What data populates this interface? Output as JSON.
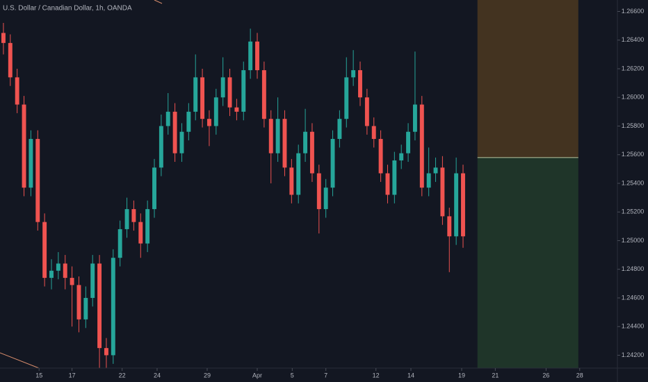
{
  "chart_data": {
    "type": "candlestick",
    "title": "U.S. Dollar / Canadian Dollar, 1h, OANDA",
    "up_color": "#26a69a",
    "down_color": "#ef5350",
    "grid": false,
    "open": [
      1.2645,
      1.2638,
      1.2614,
      1.2595,
      1.2537,
      1.2571,
      1.2513,
      1.2474,
      1.2479,
      1.2484,
      1.2474,
      1.2469,
      1.2445,
      1.246,
      1.2484,
      1.2425,
      1.242,
      1.2488,
      1.2508,
      1.2522,
      1.2513,
      1.2498,
      1.2522,
      1.2551,
      1.258,
      1.259,
      1.2561,
      1.2576,
      1.259,
      1.2614,
      1.2585,
      1.258,
      1.26,
      1.2614,
      1.2593,
      1.259,
      1.2619,
      1.2639,
      1.2619,
      1.2585,
      1.2561,
      1.2585,
      1.2551,
      1.2532,
      1.2561,
      1.2576,
      1.2547,
      1.2522,
      1.2537,
      1.2571,
      1.2585,
      1.2614,
      1.2619,
      1.26,
      1.258,
      1.2571,
      1.2547,
      1.2532,
      1.2556,
      1.2561,
      1.2576,
      1.2595,
      1.2537,
      1.2547,
      1.2551,
      1.2517,
      1.2503,
      1.2547
    ],
    "high": [
      1.2652,
      1.2644,
      1.262,
      1.2601,
      1.2577,
      1.2577,
      1.2519,
      1.2487,
      1.2492,
      1.249,
      1.2482,
      1.2475,
      1.2468,
      1.249,
      1.249,
      1.2432,
      1.2494,
      1.2514,
      1.253,
      1.2528,
      1.2519,
      1.2528,
      1.2557,
      1.2588,
      1.2603,
      1.2596,
      1.2582,
      1.2596,
      1.263,
      1.262,
      1.2591,
      1.2606,
      1.2628,
      1.262,
      1.2599,
      1.2625,
      1.2648,
      1.2645,
      1.2625,
      1.2591,
      1.26,
      1.2591,
      1.2557,
      1.2567,
      1.2592,
      1.2582,
      1.2553,
      1.2543,
      1.2577,
      1.2591,
      1.2628,
      1.2633,
      1.2625,
      1.2606,
      1.2586,
      1.2577,
      1.2553,
      1.2562,
      1.2567,
      1.2582,
      1.2632,
      1.2601,
      1.2565,
      1.2558,
      1.2559,
      1.2523,
      1.2558,
      1.2553
    ],
    "low": [
      1.263,
      1.2608,
      1.2589,
      1.2531,
      1.2531,
      1.2507,
      1.2468,
      1.2466,
      1.2473,
      1.2466,
      1.244,
      1.2436,
      1.2439,
      1.2454,
      1.2411,
      1.2411,
      1.2414,
      1.2482,
      1.2502,
      1.2507,
      1.2488,
      1.2492,
      1.2516,
      1.2545,
      1.2574,
      1.2555,
      1.2555,
      1.257,
      1.2584,
      1.2579,
      1.2566,
      1.2574,
      1.2594,
      1.2587,
      1.2584,
      1.2584,
      1.2613,
      1.2613,
      1.2579,
      1.254,
      1.2555,
      1.2545,
      1.2526,
      1.2526,
      1.2555,
      1.2541,
      1.2505,
      1.2516,
      1.2531,
      1.2565,
      1.2579,
      1.2608,
      1.2594,
      1.2574,
      1.2565,
      1.2541,
      1.2526,
      1.2526,
      1.255,
      1.2555,
      1.257,
      1.2531,
      1.2531,
      1.2541,
      1.2511,
      1.2478,
      1.2497,
      1.2495
    ],
    "close": [
      1.2638,
      1.2614,
      1.2595,
      1.2537,
      1.2571,
      1.2513,
      1.2474,
      1.2479,
      1.2484,
      1.2474,
      1.2469,
      1.2445,
      1.246,
      1.2484,
      1.2425,
      1.242,
      1.2488,
      1.2508,
      1.2522,
      1.2513,
      1.2498,
      1.2522,
      1.2551,
      1.258,
      1.259,
      1.2561,
      1.2576,
      1.259,
      1.2614,
      1.2585,
      1.258,
      1.26,
      1.2614,
      1.2593,
      1.259,
      1.2619,
      1.2639,
      1.2619,
      1.2585,
      1.2561,
      1.2585,
      1.2551,
      1.2532,
      1.2561,
      1.2576,
      1.2547,
      1.2522,
      1.2537,
      1.2571,
      1.2585,
      1.2614,
      1.2619,
      1.26,
      1.258,
      1.2571,
      1.2547,
      1.2532,
      1.2556,
      1.2561,
      1.2576,
      1.2595,
      1.2537,
      1.2547,
      1.2551,
      1.2517,
      1.2503,
      1.2547,
      1.2503
    ],
    "xlim": [
      0,
      90
    ],
    "xticks": [
      {
        "value": 5.7,
        "label": "15"
      },
      {
        "value": 10.5,
        "label": "17"
      },
      {
        "value": 17.8,
        "label": "22"
      },
      {
        "value": 22.9,
        "label": "24"
      },
      {
        "value": 30.2,
        "label": "29"
      },
      {
        "value": 37.5,
        "label": "Apr"
      },
      {
        "value": 42.6,
        "label": "5"
      },
      {
        "value": 47.5,
        "label": "7"
      },
      {
        "value": 54.8,
        "label": "12"
      },
      {
        "value": 59.9,
        "label": "14"
      },
      {
        "value": 67.3,
        "label": "19"
      },
      {
        "value": 72.2,
        "label": "21"
      },
      {
        "value": 79.6,
        "label": "26"
      },
      {
        "value": 84.5,
        "label": "28"
      }
    ],
    "ylim": [
      1.2411,
      1.2668
    ],
    "yticks": [
      {
        "value": 1.242,
        "label": "1.24200"
      },
      {
        "value": 1.244,
        "label": "1.24400"
      },
      {
        "value": 1.246,
        "label": "1.24600"
      },
      {
        "value": 1.248,
        "label": "1.24800"
      },
      {
        "value": 1.25,
        "label": "1.25000"
      },
      {
        "value": 1.252,
        "label": "1.25200"
      },
      {
        "value": 1.254,
        "label": "1.25400"
      },
      {
        "value": 1.256,
        "label": "1.25600"
      },
      {
        "value": 1.258,
        "label": "1.25800"
      },
      {
        "value": 1.26,
        "label": "1.26000"
      },
      {
        "value": 1.262,
        "label": "1.26200"
      },
      {
        "value": 1.264,
        "label": "1.26400"
      },
      {
        "value": 1.266,
        "label": "1.26600"
      }
    ],
    "position": {
      "x_start": 69.6,
      "x_end": 84.3,
      "entry": 1.2558,
      "target_color": "#433320",
      "stop_color": "#1f3529",
      "entry_color": "#b8c7a4"
    }
  }
}
